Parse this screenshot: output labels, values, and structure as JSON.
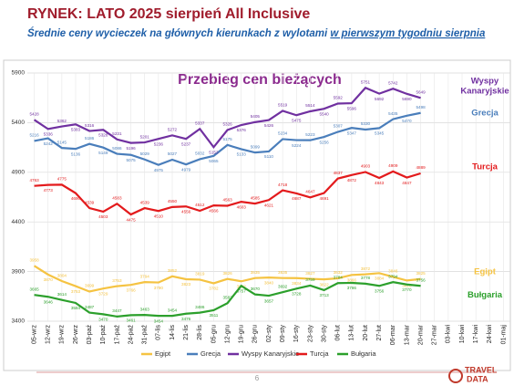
{
  "header": {
    "title": "RYNEK: LATO 2025 sierpień All Inclusive",
    "subtitle": "Średnie ceny wycieczek na głównych kierunkach z wylotami ",
    "subtitle_underlined": "w pierwszym tygodniu sierpnia"
  },
  "chart_data": {
    "type": "line",
    "title": "Przebieg cen bieżących",
    "categories": [
      "05-wrz",
      "12-wrz",
      "19-wrz",
      "26-wrz",
      "03-paź",
      "10-paź",
      "17-paź",
      "24-paź",
      "31-paź",
      "07-lis",
      "14-lis",
      "21-lis",
      "28-lis",
      "05-gru",
      "12-gru",
      "19-gru",
      "26-gru",
      "02-sty",
      "09-sty",
      "16-sty",
      "23-sty",
      "30-sty",
      "06-lut",
      "13-lut",
      "20-lut",
      "27-lut",
      "06-mar",
      "13-mar",
      "20-mar",
      "27-mar",
      "03-kwi",
      "10-kwi",
      "17-kwi",
      "24-kwi",
      "01-maj"
    ],
    "series": [
      {
        "name": "Egipt",
        "color": "#f5c342",
        "values": [
          3958,
          3870,
          3804,
          3753,
          3699,
          3729,
          3753,
          3766,
          3794,
          3790,
          3852,
          3823,
          3819,
          3782,
          3826,
          3802,
          3835,
          3840,
          3835,
          3834,
          3827,
          3822,
          3832,
          3866,
          3872,
          3884,
          3846,
          3810,
          3825,
          null,
          null,
          null,
          null,
          null,
          null
        ]
      },
      {
        "name": "Grecja",
        "color": "#4a7ebb",
        "values": [
          5216,
          5242,
          5145,
          5136,
          5186,
          5149,
          5086,
          5075,
          5029,
          4975,
          5027,
          4979,
          5032,
          5065,
          5175,
          5133,
          5099,
          5110,
          5234,
          5224,
          5223,
          5256,
          5307,
          5347,
          5330,
          5345,
          5435,
          5470,
          5498,
          null,
          null,
          null,
          null,
          null,
          null
        ]
      },
      {
        "name": "Wyspy Kanaryjskie",
        "color": "#7030a0",
        "values": [
          5428,
          5336,
          5362,
          5383,
          5316,
          5328,
          5231,
          5196,
          5201,
          5236,
          5272,
          5237,
          5337,
          5153,
          5326,
          5376,
          5405,
          5426,
          5519,
          5475,
          5514,
          5540,
          5592,
          5596,
          5751,
          5692,
          5742,
          5690,
          5649,
          null,
          null,
          null,
          null,
          null,
          null
        ]
      },
      {
        "name": "Turcja",
        "color": "#e31a1c",
        "values": [
          4763,
          4773,
          4775,
          4690,
          4539,
          4503,
          4583,
          4475,
          4539,
          4510,
          4550,
          4556,
          4512,
          4566,
          4563,
          4603,
          4585,
          4621,
          4718,
          4687,
          4647,
          4691,
          4837,
          4872,
          4903,
          4843,
          4909,
          4847,
          4889,
          null,
          null,
          null,
          null,
          null,
          null
        ]
      },
      {
        "name": "Bułgaria",
        "color": "#2ca02c",
        "values": [
          3665,
          3646,
          3614,
          3584,
          3487,
          3470,
          3447,
          3461,
          3463,
          3454,
          3454,
          3476,
          3486,
          3511,
          3582,
          3757,
          3670,
          3657,
          3692,
          3728,
          3759,
          3713,
          3784,
          3786,
          3778,
          3756,
          3794,
          3770,
          3756,
          null,
          null,
          null,
          null,
          null,
          null
        ]
      }
    ],
    "ylim": [
      3400,
      5900
    ],
    "yticks": [
      3400,
      3900,
      4400,
      4900,
      5400,
      5900
    ],
    "grid": true
  },
  "footer": {
    "page": "6",
    "logo_top": "TRAVEL",
    "logo_bottom": "DATA"
  }
}
